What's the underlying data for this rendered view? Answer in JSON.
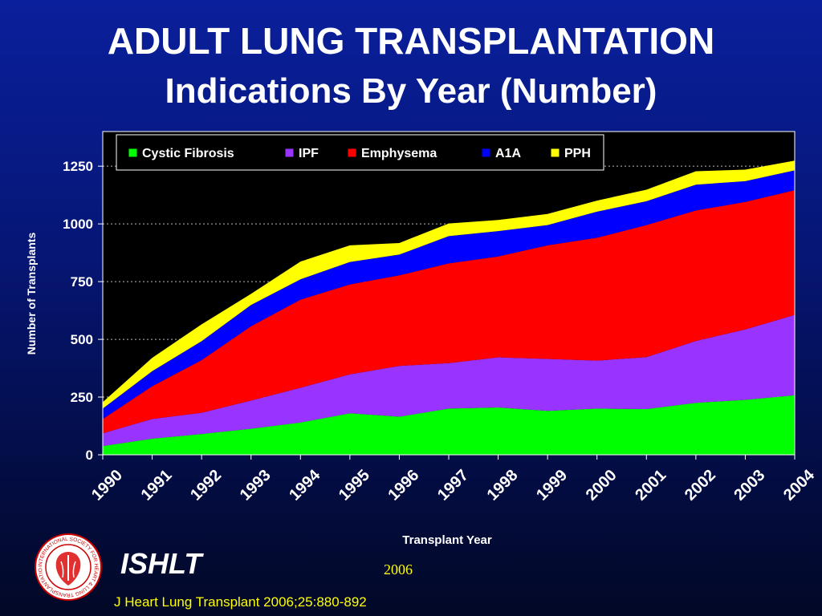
{
  "slide": {
    "title_line1": "ADULT LUNG TRANSPLANTATION",
    "title_line2": "Indications By Year (Number)",
    "footer_org": "ISHLT",
    "footer_year": "2006",
    "citation": "J Heart Lung Transplant 2006;25:880-892"
  },
  "chart_data": {
    "type": "area",
    "stacked": true,
    "title": "",
    "xlabel": "Transplant Year",
    "ylabel": "Number of Transplants",
    "ylim": [
      0,
      1400
    ],
    "yticks": [
      0,
      250,
      500,
      750,
      1000,
      1250
    ],
    "grid": "horizontal dotted",
    "legend_position": "top",
    "categories": [
      "1990",
      "1991",
      "1992",
      "1993",
      "1994",
      "1995",
      "1996",
      "1997",
      "1998",
      "1999",
      "2000",
      "2001",
      "2002",
      "2003",
      "2004"
    ],
    "series": [
      {
        "name": "Cystic Fibrosis",
        "color": "#00ff00",
        "values": [
          38,
          70,
          90,
          113,
          140,
          180,
          165,
          200,
          205,
          190,
          200,
          198,
          225,
          238,
          258
        ]
      },
      {
        "name": "IPF",
        "color": "#9933ff",
        "values": [
          55,
          85,
          92,
          122,
          150,
          168,
          220,
          197,
          217,
          225,
          208,
          225,
          268,
          305,
          348
        ]
      },
      {
        "name": "Emphysema",
        "color": "#ff0000",
        "values": [
          62,
          142,
          228,
          322,
          382,
          390,
          392,
          432,
          437,
          492,
          532,
          572,
          565,
          552,
          540
        ]
      },
      {
        "name": "A1A",
        "color": "#0000ff",
        "values": [
          45,
          65,
          82,
          92,
          88,
          97,
          90,
          118,
          110,
          88,
          113,
          103,
          112,
          90,
          86
        ]
      },
      {
        "name": "PPH",
        "color": "#ffff00",
        "values": [
          28,
          58,
          73,
          48,
          77,
          72,
          50,
          55,
          48,
          48,
          48,
          50,
          58,
          50,
          42
        ]
      }
    ]
  }
}
